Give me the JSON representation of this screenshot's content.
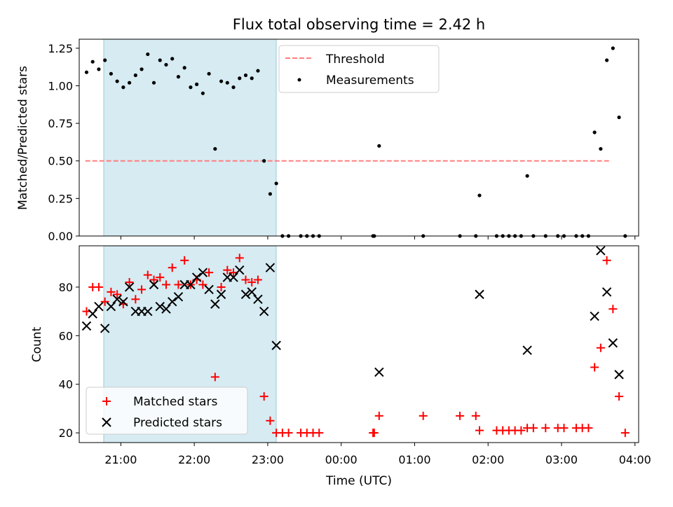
{
  "chart_data": [
    {
      "type": "scatter",
      "title": "Flux total observing time = 2.42 h",
      "xlabel": "",
      "ylabel": "Matched/Predicted stars",
      "xlim": [
        "20:26",
        "04:03"
      ],
      "ylim": [
        0,
        1.31
      ],
      "yticks": [
        "0.00",
        "0.25",
        "0.50",
        "0.75",
        "1.00",
        "1.25"
      ],
      "highlight_span": [
        "20:31",
        "22:56"
      ],
      "legend": {
        "location": "top-center",
        "entries": [
          "Threshold",
          "Measurements"
        ]
      },
      "threshold": {
        "name": "Threshold",
        "y": 0.5,
        "x_range": [
          "20:31",
          "03:40"
        ],
        "color": "#ff7f7f"
      },
      "series": [
        {
          "name": "Measurements",
          "color": "#000000",
          "x": [
            "20:32",
            "20:37",
            "20:42",
            "20:47",
            "20:52",
            "20:57",
            "21:02",
            "21:07",
            "21:12",
            "21:17",
            "21:22",
            "21:27",
            "21:32",
            "21:37",
            "21:42",
            "21:47",
            "21:52",
            "21:57",
            "22:02",
            "22:07",
            "22:12",
            "22:17",
            "22:22",
            "22:27",
            "22:32",
            "22:37",
            "22:42",
            "22:47",
            "22:52",
            "22:57",
            "23:02",
            "23:07",
            "23:12",
            "23:17",
            "23:27",
            "23:32",
            "23:37",
            "23:42",
            "00:26",
            "00:27",
            "00:31",
            "01:07",
            "01:37",
            "01:50",
            "01:53",
            "02:07",
            "02:12",
            "02:17",
            "02:22",
            "02:27",
            "02:32",
            "02:37",
            "02:47",
            "02:57",
            "03:02",
            "03:12",
            "03:17",
            "03:22",
            "03:27",
            "03:32",
            "03:37",
            "03:42",
            "03:47",
            "03:52"
          ],
          "y": [
            1.09,
            1.16,
            1.11,
            1.17,
            1.08,
            1.03,
            0.99,
            1.02,
            1.07,
            1.11,
            1.21,
            1.02,
            1.17,
            1.14,
            1.18,
            1.06,
            1.12,
            0.99,
            1.01,
            0.95,
            1.08,
            0.58,
            1.03,
            1.02,
            0.99,
            1.05,
            1.07,
            1.05,
            1.1,
            0.5,
            0.28,
            0.35,
            0.0,
            0.0,
            0.0,
            0.0,
            0.0,
            0.0,
            0.0,
            0.0,
            0.6,
            0.0,
            0.0,
            0.0,
            0.27,
            0.0,
            0.0,
            0.0,
            0.0,
            0.0,
            0.4,
            0.0,
            0.0,
            0.0,
            0.0,
            0.0,
            0.0,
            0.0,
            0.69,
            0.58,
            1.17,
            1.25,
            0.79,
            0.0
          ]
        }
      ]
    },
    {
      "type": "scatter",
      "title": "",
      "xlabel": "Time (UTC)",
      "ylabel": "Count",
      "xlim": [
        "20:26",
        "04:03"
      ],
      "ylim": [
        16,
        97
      ],
      "xticks": [
        "21:00",
        "22:00",
        "23:00",
        "00:00",
        "01:00",
        "02:00",
        "03:00",
        "04:00"
      ],
      "yticks": [
        "20",
        "40",
        "60",
        "80"
      ],
      "highlight_span": [
        "20:31",
        "22:56"
      ],
      "legend": {
        "location": "lower-left",
        "entries": [
          "Matched stars",
          "Predicted stars"
        ]
      },
      "x": [
        "20:32",
        "20:37",
        "20:42",
        "20:47",
        "20:52",
        "20:57",
        "21:02",
        "21:07",
        "21:12",
        "21:17",
        "21:22",
        "21:27",
        "21:32",
        "21:37",
        "21:42",
        "21:47",
        "21:52",
        "21:57",
        "22:02",
        "22:07",
        "22:12",
        "22:17",
        "22:22",
        "22:27",
        "22:32",
        "22:37",
        "22:42",
        "22:47",
        "22:52",
        "22:57",
        "23:02",
        "23:07",
        "23:12",
        "23:17",
        "23:27",
        "23:32",
        "23:37",
        "23:42",
        "00:26",
        "00:27",
        "00:31",
        "01:07",
        "01:37",
        "01:50",
        "01:53",
        "02:07",
        "02:12",
        "02:17",
        "02:22",
        "02:27",
        "02:32",
        "02:37",
        "02:47",
        "02:57",
        "03:02",
        "03:12",
        "03:17",
        "03:22",
        "03:27",
        "03:32",
        "03:37",
        "03:42",
        "03:47",
        "03:52"
      ],
      "series": [
        {
          "name": "Matched stars",
          "marker": "plus",
          "color": "#ff0000",
          "y": [
            70,
            80,
            80,
            74,
            78,
            77,
            73,
            82,
            75,
            79,
            85,
            83,
            84,
            81,
            88,
            81,
            91,
            81,
            83,
            81,
            86,
            43,
            80,
            87,
            86,
            92,
            83,
            82,
            83,
            35,
            25,
            20,
            20,
            20,
            20,
            20,
            20,
            20,
            20,
            20,
            27,
            27,
            27,
            27,
            21,
            21,
            21,
            21,
            21,
            21,
            22,
            22,
            22,
            22,
            22,
            22,
            22,
            22,
            47,
            55,
            91,
            71,
            35,
            20
          ]
        },
        {
          "name": "Predicted stars",
          "marker": "x",
          "color": "#000000",
          "y": [
            64,
            69,
            72,
            63,
            72,
            75,
            74,
            80,
            70,
            70,
            70,
            81,
            72,
            71,
            74,
            76,
            81,
            81,
            84,
            86,
            79,
            73,
            77,
            84,
            84,
            87,
            77,
            78,
            75,
            70,
            88,
            56,
            null,
            null,
            null,
            null,
            null,
            null,
            null,
            null,
            45,
            null,
            null,
            null,
            77,
            null,
            null,
            null,
            null,
            null,
            54,
            null,
            null,
            null,
            null,
            null,
            null,
            null,
            68,
            95,
            78,
            57,
            44,
            null
          ]
        }
      ]
    }
  ]
}
